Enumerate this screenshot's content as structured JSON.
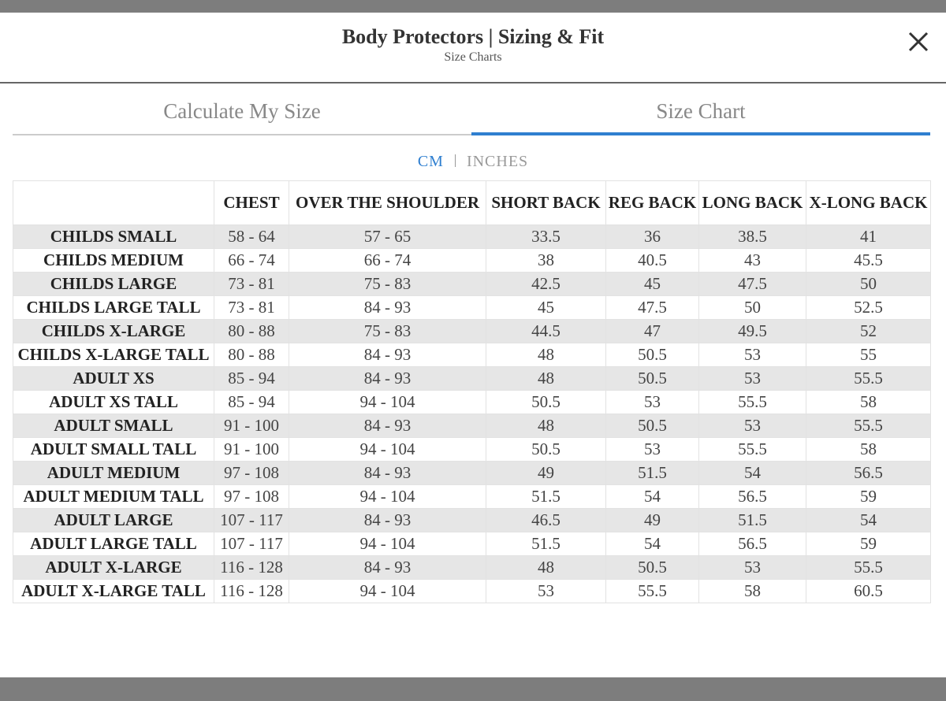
{
  "header": {
    "title": "Body Protectors | Sizing & Fit",
    "subtitle": "Size Charts"
  },
  "tabs": [
    "Calculate My Size",
    "Size Chart"
  ],
  "units": [
    "CM",
    "INCHES"
  ],
  "table": {
    "columns": [
      "CHEST",
      "OVER THE SHOULDER",
      "SHORT BACK",
      "REG BACK",
      "LONG BACK",
      "X-LONG BACK"
    ],
    "rows": [
      [
        "CHILDS SMALL",
        "58 - 64",
        "57 - 65",
        "33.5",
        "36",
        "38.5",
        "41"
      ],
      [
        "CHILDS MEDIUM",
        "66 - 74",
        "66 - 74",
        "38",
        "40.5",
        "43",
        "45.5"
      ],
      [
        "CHILDS LARGE",
        "73 - 81",
        "75 - 83",
        "42.5",
        "45",
        "47.5",
        "50"
      ],
      [
        "CHILDS LARGE TALL",
        "73 - 81",
        "84 - 93",
        "45",
        "47.5",
        "50",
        "52.5"
      ],
      [
        "CHILDS X-LARGE",
        "80 - 88",
        "75 - 83",
        "44.5",
        "47",
        "49.5",
        "52"
      ],
      [
        "CHILDS X-LARGE TALL",
        "80 - 88",
        "84 - 93",
        "48",
        "50.5",
        "53",
        "55"
      ],
      [
        "ADULT XS",
        "85 - 94",
        "84 - 93",
        "48",
        "50.5",
        "53",
        "55.5"
      ],
      [
        "ADULT XS TALL",
        "85 - 94",
        "94 - 104",
        "50.5",
        "53",
        "55.5",
        "58"
      ],
      [
        "ADULT SMALL",
        "91 - 100",
        "84 - 93",
        "48",
        "50.5",
        "53",
        "55.5"
      ],
      [
        "ADULT SMALL TALL",
        "91 - 100",
        "94 - 104",
        "50.5",
        "53",
        "55.5",
        "58"
      ],
      [
        "ADULT MEDIUM",
        "97 - 108",
        "84 - 93",
        "49",
        "51.5",
        "54",
        "56.5"
      ],
      [
        "ADULT MEDIUM TALL",
        "97 - 108",
        "94 - 104",
        "51.5",
        "54",
        "56.5",
        "59"
      ],
      [
        "ADULT LARGE",
        "107 - 117",
        "84 - 93",
        "46.5",
        "49",
        "51.5",
        "54"
      ],
      [
        "ADULT LARGE TALL",
        "107 - 117",
        "94 - 104",
        "51.5",
        "54",
        "56.5",
        "59"
      ],
      [
        "ADULT X-LARGE",
        "116 - 128",
        "84 - 93",
        "48",
        "50.5",
        "53",
        "55.5"
      ],
      [
        "ADULT X-LARGE TALL",
        "116 - 128",
        "94 - 104",
        "53",
        "55.5",
        "58",
        "60.5"
      ]
    ]
  }
}
